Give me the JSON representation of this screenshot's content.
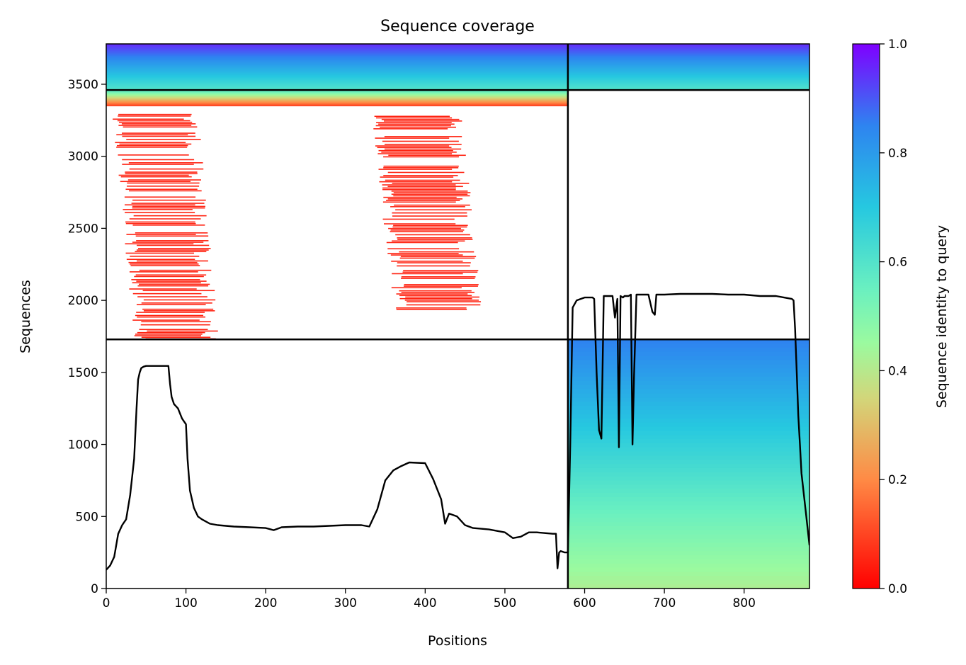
{
  "chart_data": {
    "type": "heatmap",
    "title": "Sequence coverage",
    "xlabel": "Positions",
    "ylabel": "Sequences",
    "xlim": [
      0,
      882
    ],
    "ylim": [
      0,
      3780
    ],
    "x_ticks": [
      0,
      100,
      200,
      300,
      400,
      500,
      600,
      700,
      800
    ],
    "y_ticks": [
      0,
      500,
      1000,
      1500,
      2000,
      2500,
      3000,
      3500
    ],
    "colorbar": {
      "label": "Sequence identity to query",
      "range": [
        0,
        1
      ],
      "ticks": [
        "0.0",
        "0.2",
        "0.4",
        "0.6",
        "0.8",
        "1.0"
      ],
      "colormap": "rainbow"
    },
    "chain_boundaries": {
      "x": 579,
      "y": [
        1729,
        3460
      ]
    },
    "blocks": [
      {
        "name": "top-left",
        "x": [
          0,
          579
        ],
        "y": [
          3460,
          3780
        ],
        "identity": [
          0.6,
          0.95
        ]
      },
      {
        "name": "top-right",
        "x": [
          579,
          882
        ],
        "y": [
          3460,
          3780
        ],
        "identity": [
          0.6,
          0.95
        ]
      },
      {
        "name": "upper-left-transition",
        "x": [
          0,
          579
        ],
        "y": [
          3350,
          3460
        ],
        "identity": [
          0.1,
          0.6
        ]
      },
      {
        "name": "lower-right",
        "x": [
          579,
          882
        ],
        "y": [
          0,
          1729
        ],
        "identity": [
          0.42,
          0.85
        ]
      },
      {
        "name": "red-region-A",
        "x": [
          15,
          130
        ],
        "y": [
          1729,
          3300
        ],
        "identity": [
          0.05,
          0.05
        ]
      },
      {
        "name": "red-region-B",
        "x": [
          340,
          460
        ],
        "y": [
          1900,
          3300
        ],
        "identity": [
          0.05,
          0.05
        ]
      }
    ],
    "series": [
      {
        "name": "",
        "x": [
          0,
          5,
          10,
          15,
          20,
          25,
          30,
          35,
          38,
          40,
          42,
          44,
          47,
          50,
          60,
          70,
          78,
          80,
          82,
          85,
          90,
          95,
          100,
          102,
          105,
          110,
          115,
          120,
          130,
          140,
          160,
          180,
          200,
          210,
          220,
          240,
          260,
          280,
          300,
          320,
          330,
          340,
          350,
          360,
          370,
          380,
          400,
          410,
          420,
          425,
          430,
          440,
          450,
          460,
          480,
          500,
          510,
          520,
          530,
          540,
          560,
          564,
          566,
          568,
          570,
          575,
          579
        ],
        "y": [
          130,
          160,
          220,
          380,
          440,
          480,
          650,
          900,
          1250,
          1450,
          1500,
          1530,
          1540,
          1545,
          1545,
          1545,
          1545,
          1420,
          1330,
          1280,
          1250,
          1180,
          1140,
          900,
          680,
          560,
          500,
          480,
          450,
          440,
          430,
          425,
          420,
          405,
          425,
          430,
          430,
          435,
          440,
          440,
          430,
          550,
          750,
          820,
          850,
          875,
          870,
          760,
          620,
          450,
          520,
          500,
          440,
          420,
          410,
          390,
          350,
          360,
          390,
          390,
          380,
          380,
          140,
          250,
          260,
          250,
          250
        ]
      },
      {
        "name": "",
        "x": [
          579,
          582,
          585,
          590,
          600,
          610,
          612,
          615,
          618,
          621,
          624,
          627,
          630,
          635,
          638,
          641,
          643,
          645,
          648,
          650,
          655,
          658,
          660,
          662,
          665,
          670,
          680,
          685,
          688,
          690,
          700,
          720,
          740,
          760,
          780,
          800,
          820,
          840,
          850,
          860,
          862,
          864,
          866,
          868,
          870,
          872,
          875,
          878,
          882
        ],
        "y": [
          250,
          1000,
          1950,
          2000,
          2020,
          2020,
          2010,
          1500,
          1100,
          1040,
          2030,
          2030,
          2030,
          2030,
          1880,
          2010,
          980,
          2030,
          2020,
          2030,
          2030,
          2040,
          1000,
          1480,
          2040,
          2040,
          2040,
          1920,
          1900,
          2040,
          2040,
          2045,
          2045,
          2045,
          2040,
          2040,
          2030,
          2030,
          2020,
          2010,
          2000,
          1800,
          1500,
          1200,
          1000,
          800,
          650,
          500,
          300
        ]
      }
    ]
  }
}
